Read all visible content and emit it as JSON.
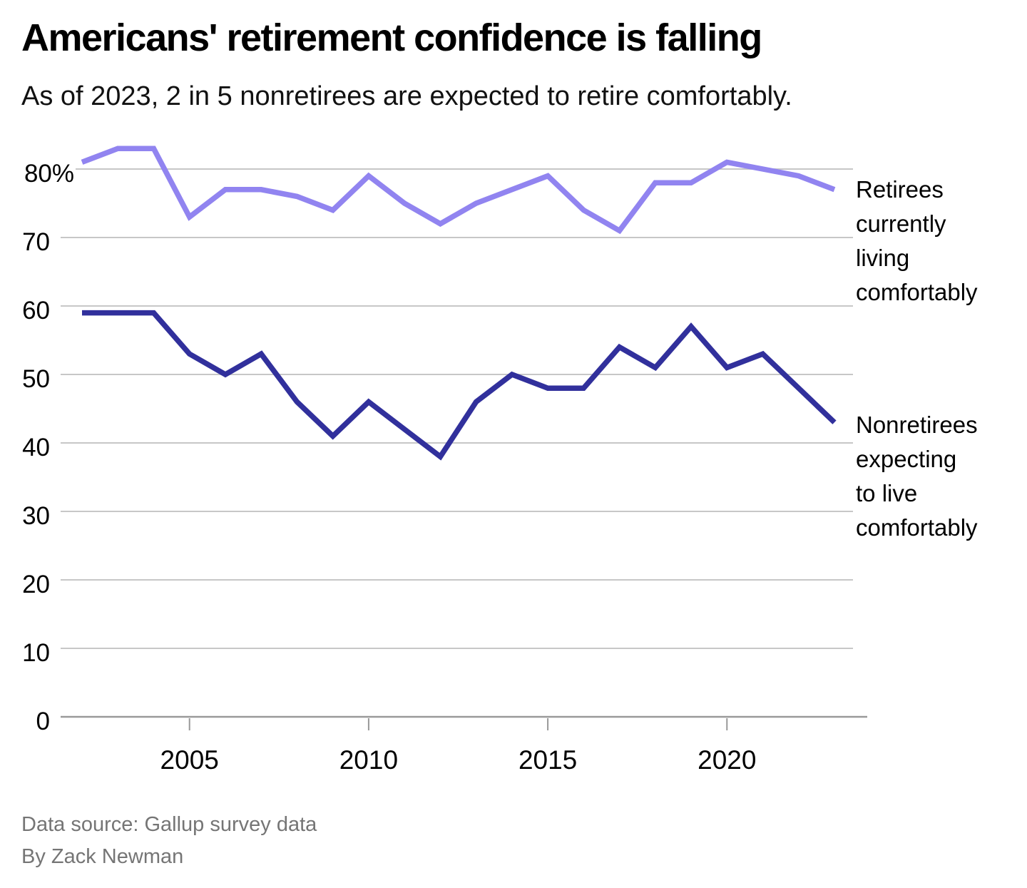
{
  "header": {
    "title": "Americans' retirement confidence is falling",
    "subtitle": "As of 2023, 2 in 5 nonretirees are expected to retire comfortably."
  },
  "chart_data": {
    "type": "line",
    "x": [
      2002,
      2003,
      2004,
      2005,
      2006,
      2007,
      2008,
      2009,
      2010,
      2011,
      2012,
      2013,
      2014,
      2015,
      2016,
      2017,
      2018,
      2019,
      2020,
      2021,
      2022,
      2023
    ],
    "series": [
      {
        "name": "Retirees currently living comfortably",
        "color": "#9184f0",
        "values": [
          81,
          83,
          83,
          73,
          77,
          77,
          76,
          74,
          79,
          75,
          72,
          75,
          77,
          79,
          74,
          71,
          78,
          78,
          81,
          80,
          79,
          77
        ]
      },
      {
        "name": "Nonretirees expecting to live comfortably",
        "color": "#31309c",
        "values": [
          59,
          59,
          59,
          53,
          50,
          53,
          46,
          41,
          46,
          42,
          38,
          46,
          50,
          48,
          48,
          54,
          51,
          57,
          51,
          53,
          48,
          43
        ]
      }
    ],
    "ylim": [
      0,
      85
    ],
    "y_ticks": [
      {
        "v": 80,
        "label": "80%"
      },
      {
        "v": 70,
        "label": "70"
      },
      {
        "v": 60,
        "label": "60"
      },
      {
        "v": 50,
        "label": "50"
      },
      {
        "v": 40,
        "label": "40"
      },
      {
        "v": 30,
        "label": "30"
      },
      {
        "v": 20,
        "label": "20"
      },
      {
        "v": 10,
        "label": "10"
      },
      {
        "v": 0,
        "label": "0"
      }
    ],
    "x_ticks": [
      {
        "year": 2005,
        "label": "2005"
      },
      {
        "year": 2010,
        "label": "2010"
      },
      {
        "year": 2015,
        "label": "2015"
      },
      {
        "year": 2020,
        "label": "2020"
      }
    ],
    "grid": true,
    "legend_position": "right-annotations",
    "style": {
      "grid_color": "#c7c7c7",
      "axis_color": "#999999",
      "tick_color": "#999999",
      "tick_label_color": "#000000"
    }
  },
  "series_labels": {
    "retirees": [
      "Retirees",
      "currently",
      "living",
      "comfortably"
    ],
    "nonretirees": [
      "Nonretirees",
      "expecting",
      "to live",
      "comfortably"
    ]
  },
  "footer": {
    "source": "Data source: Gallup survey data",
    "byline": "By Zack Newman"
  }
}
